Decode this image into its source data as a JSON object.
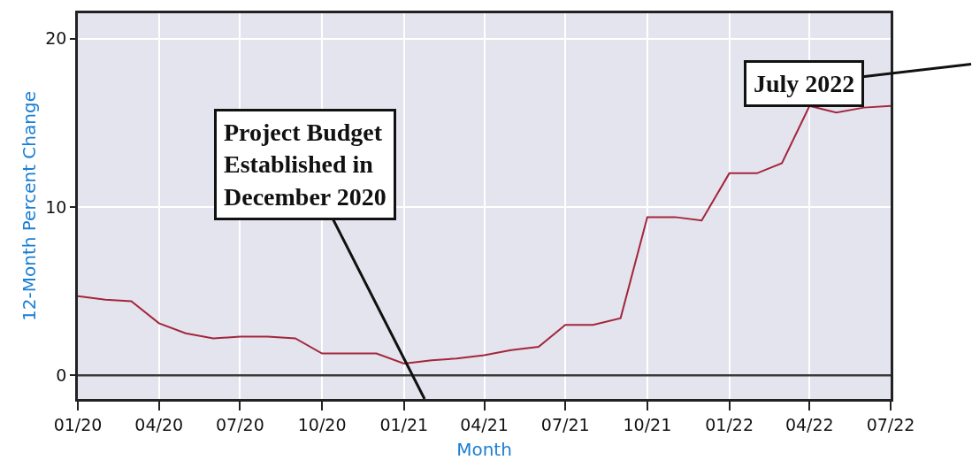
{
  "chart_data": {
    "type": "line",
    "xlabel": "Month",
    "ylabel": "12-Month Percent Change",
    "x": [
      "2020-01",
      "2020-02",
      "2020-03",
      "2020-04",
      "2020-05",
      "2020-06",
      "2020-07",
      "2020-08",
      "2020-09",
      "2020-10",
      "2020-11",
      "2020-12",
      "2021-01",
      "2021-02",
      "2021-03",
      "2021-04",
      "2021-05",
      "2021-06",
      "2021-07",
      "2021-08",
      "2021-09",
      "2021-10",
      "2021-11",
      "2021-12",
      "2022-01",
      "2022-02",
      "2022-03",
      "2022-04",
      "2022-05",
      "2022-06",
      "2022-07"
    ],
    "series": [
      {
        "color": "#a3263c",
        "values": [
          4.7,
          4.5,
          4.4,
          3.1,
          2.5,
          2.2,
          2.3,
          2.3,
          2.2,
          1.3,
          1.3,
          1.3,
          0.7,
          0.9,
          1.0,
          1.2,
          1.5,
          1.7,
          3.0,
          3.0,
          3.4,
          9.4,
          9.4,
          9.2,
          12.0,
          12.0,
          12.6,
          16.0,
          15.6,
          15.9,
          16.0
        ]
      }
    ],
    "xlim": [
      "2020-01",
      "2022-07"
    ],
    "ylim": [
      -1.4,
      21.5
    ],
    "xticks": [
      {
        "value": "2020-01",
        "label": "01/20"
      },
      {
        "value": "2020-04",
        "label": "04/20"
      },
      {
        "value": "2020-07",
        "label": "07/20"
      },
      {
        "value": "2020-10",
        "label": "10/20"
      },
      {
        "value": "2021-01",
        "label": "01/21"
      },
      {
        "value": "2021-04",
        "label": "04/21"
      },
      {
        "value": "2021-07",
        "label": "07/21"
      },
      {
        "value": "2021-10",
        "label": "10/21"
      },
      {
        "value": "2022-01",
        "label": "01/22"
      },
      {
        "value": "2022-04",
        "label": "04/22"
      },
      {
        "value": "2022-07",
        "label": "07/22"
      }
    ],
    "yticks": [
      0,
      10,
      20
    ],
    "ref_lines": [
      {
        "axis": "y",
        "value": 0,
        "color": "#3a3a3a"
      }
    ],
    "grid": true,
    "marker": "none",
    "line_style": "solid",
    "annotations": [
      "Project Budget\nEstablished in\nDecember 2020",
      "July 2022"
    ]
  }
}
